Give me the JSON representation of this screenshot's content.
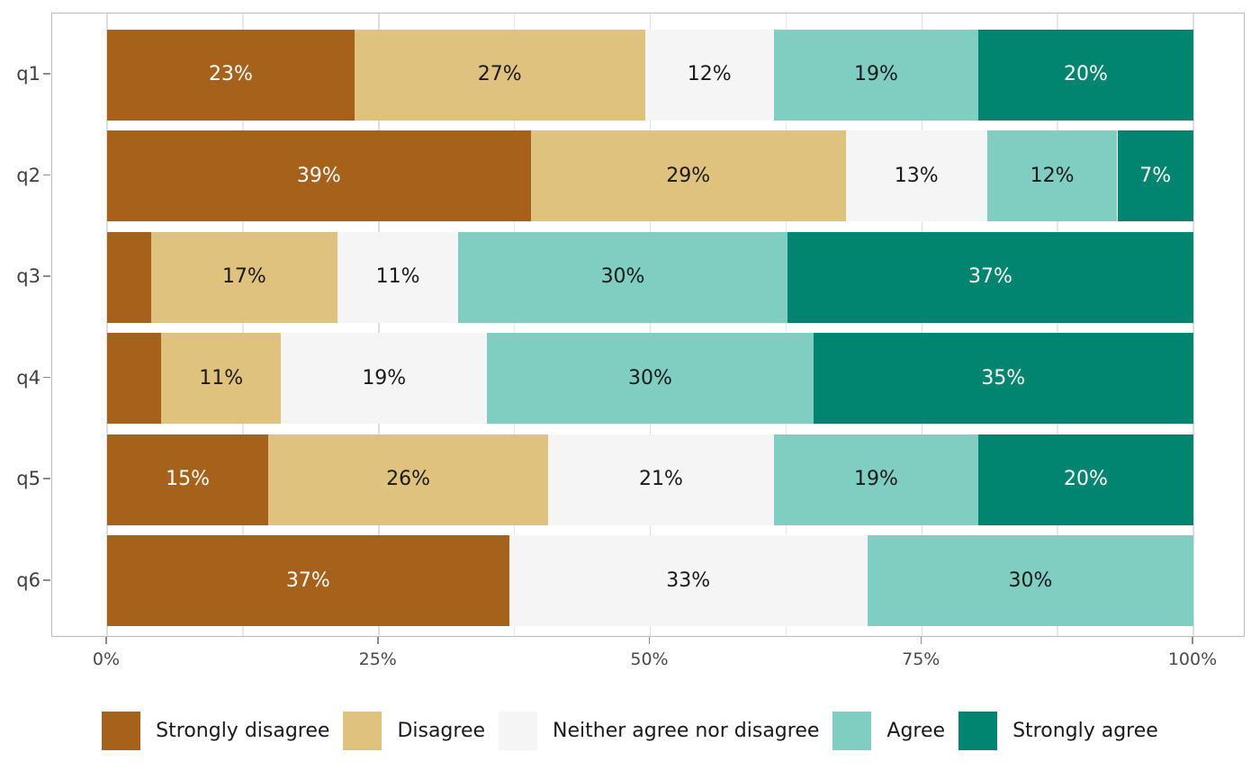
{
  "chart_data": {
    "type": "bar",
    "orientation": "horizontal",
    "stacked": true,
    "title": "",
    "xlabel": "",
    "ylabel": "",
    "categories": [
      "q1",
      "q2",
      "q3",
      "q4",
      "q5",
      "q6"
    ],
    "series": [
      {
        "name": "Strongly disagree",
        "color": "#a6611a",
        "label_color": "#ffffff",
        "values": [
          23,
          39,
          4,
          5,
          15,
          37
        ],
        "labels": [
          "23%",
          "39%",
          "",
          "",
          "15%",
          "37%"
        ]
      },
      {
        "name": "Disagree",
        "color": "#dfc27d",
        "label_color": "#1a1a1a",
        "values": [
          27,
          29,
          17,
          11,
          26,
          0
        ],
        "labels": [
          "27%",
          "29%",
          "17%",
          "11%",
          "26%",
          ""
        ]
      },
      {
        "name": "Neither agree nor disagree",
        "color": "#f5f5f5",
        "label_color": "#1a1a1a",
        "values": [
          12,
          13,
          11,
          19,
          21,
          33
        ],
        "labels": [
          "12%",
          "13%",
          "11%",
          "19%",
          "21%",
          "33%"
        ]
      },
      {
        "name": "Agree",
        "color": "#80cdc1",
        "label_color": "#1a1a1a",
        "values": [
          19,
          12,
          30,
          30,
          19,
          30
        ],
        "labels": [
          "19%",
          "12%",
          "30%",
          "30%",
          "19%",
          "30%"
        ]
      },
      {
        "name": "Strongly agree",
        "color": "#018571",
        "label_color": "#ffffff",
        "values": [
          20,
          7,
          37,
          35,
          20,
          0
        ],
        "labels": [
          "20%",
          "7%",
          "37%",
          "35%",
          "20%",
          ""
        ]
      }
    ],
    "x_ticks": [
      "0%",
      "25%",
      "50%",
      "75%",
      "100%"
    ],
    "x_tick_values": [
      0,
      25,
      50,
      75,
      100
    ],
    "minor_grid_values": [
      12.5,
      37.5,
      62.5,
      87.5
    ],
    "xlim": [
      0,
      100
    ],
    "grid": "vertical",
    "legend_position": "bottom"
  },
  "styles": {
    "background": "#ffffff",
    "panel_border_color": "#bcbcbc",
    "grid_major_color": "#dedede",
    "grid_minor_color": "#e8e8e8",
    "tick_color": "#8c8c8c",
    "x_label_color": "#4a4a4a",
    "y_label_color": "#3f3f3f",
    "legend_text_color": "#1a1a1a"
  }
}
